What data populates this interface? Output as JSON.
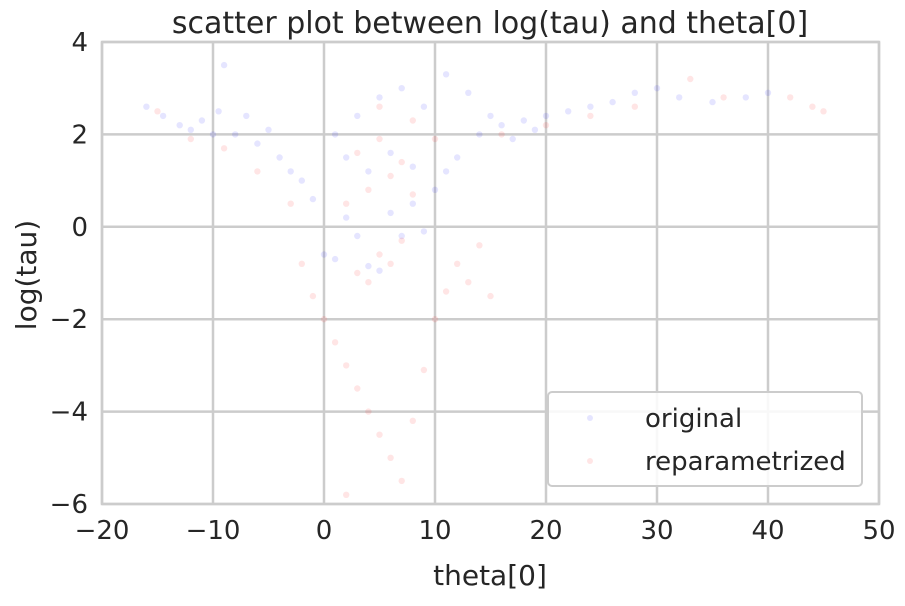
{
  "chart_data": {
    "type": "scatter",
    "title": "scatter plot between log(tau) and theta[0]",
    "xlabel": "theta[0]",
    "ylabel": "log(tau)",
    "xlim": [
      -20,
      50
    ],
    "ylim": [
      -6,
      4
    ],
    "xticks": [
      -20,
      -10,
      0,
      10,
      20,
      30,
      40,
      50
    ],
    "yticks": [
      -6,
      -4,
      -2,
      0,
      2,
      4
    ],
    "grid": true,
    "legend_position": "lower-right",
    "point_alpha": 0.1,
    "series": [
      {
        "name": "original",
        "color": "#0000ff",
        "points": [
          [
            -16,
            2.6
          ],
          [
            -14.5,
            2.4
          ],
          [
            -13,
            2.2
          ],
          [
            -12,
            2.1
          ],
          [
            -11,
            2.3
          ],
          [
            -10,
            2.0
          ],
          [
            -9.5,
            2.5
          ],
          [
            -9,
            3.5
          ],
          [
            -8,
            2.0
          ],
          [
            -7,
            2.4
          ],
          [
            -6,
            1.8
          ],
          [
            -5,
            2.1
          ],
          [
            -4,
            1.5
          ],
          [
            -3,
            1.2
          ],
          [
            -2,
            1.0
          ],
          [
            -1,
            0.6
          ],
          [
            0,
            -0.6
          ],
          [
            1,
            -0.7
          ],
          [
            2,
            0.2
          ],
          [
            3,
            -0.2
          ],
          [
            4,
            -0.85
          ],
          [
            5,
            -0.95
          ],
          [
            6,
            0.3
          ],
          [
            7,
            -0.2
          ],
          [
            8,
            0.5
          ],
          [
            9,
            -0.1
          ],
          [
            10,
            0.8
          ],
          [
            11,
            1.2
          ],
          [
            12,
            1.5
          ],
          [
            14,
            2.0
          ],
          [
            16,
            2.2
          ],
          [
            18,
            2.3
          ],
          [
            20,
            2.4
          ],
          [
            22,
            2.5
          ],
          [
            24,
            2.6
          ],
          [
            26,
            2.7
          ],
          [
            28,
            2.9
          ],
          [
            30,
            3.0
          ],
          [
            32,
            2.8
          ],
          [
            35,
            2.7
          ],
          [
            38,
            2.8
          ],
          [
            40,
            2.9
          ],
          [
            2,
            1.5
          ],
          [
            4,
            1.2
          ],
          [
            6,
            1.6
          ],
          [
            8,
            1.3
          ],
          [
            3,
            2.4
          ],
          [
            5,
            2.8
          ],
          [
            7,
            3.0
          ],
          [
            9,
            2.6
          ],
          [
            1,
            2.0
          ],
          [
            11,
            3.3
          ],
          [
            13,
            2.9
          ],
          [
            15,
            2.4
          ],
          [
            17,
            1.9
          ],
          [
            19,
            2.1
          ]
        ]
      },
      {
        "name": "reparametrized",
        "color": "#ff0000",
        "points": [
          [
            -15,
            2.5
          ],
          [
            -12,
            1.9
          ],
          [
            -9,
            1.7
          ],
          [
            -6,
            1.2
          ],
          [
            -3,
            0.5
          ],
          [
            -2,
            -0.8
          ],
          [
            -1,
            -1.5
          ],
          [
            0,
            -2.0
          ],
          [
            1,
            -2.5
          ],
          [
            2,
            -3.0
          ],
          [
            3,
            -3.5
          ],
          [
            4,
            -4.0
          ],
          [
            5,
            -4.5
          ],
          [
            6,
            -5.0
          ],
          [
            7,
            -5.5
          ],
          [
            2,
            -5.8
          ],
          [
            8,
            -4.2
          ],
          [
            9,
            -3.1
          ],
          [
            10,
            -2.0
          ],
          [
            11,
            -1.4
          ],
          [
            12,
            -0.8
          ],
          [
            13,
            -1.2
          ],
          [
            14,
            -0.4
          ],
          [
            15,
            -1.5
          ],
          [
            3,
            -1.0
          ],
          [
            4,
            -1.2
          ],
          [
            5,
            -0.6
          ],
          [
            6,
            -0.8
          ],
          [
            7,
            -0.3
          ],
          [
            2,
            0.5
          ],
          [
            4,
            0.8
          ],
          [
            6,
            1.1
          ],
          [
            8,
            0.7
          ],
          [
            3,
            1.6
          ],
          [
            5,
            1.9
          ],
          [
            7,
            1.4
          ],
          [
            5,
            2.6
          ],
          [
            8,
            2.3
          ],
          [
            10,
            1.9
          ],
          [
            16,
            2.0
          ],
          [
            20,
            2.2
          ],
          [
            24,
            2.4
          ],
          [
            28,
            2.6
          ],
          [
            33,
            3.2
          ],
          [
            36,
            2.8
          ],
          [
            42,
            2.8
          ],
          [
            44,
            2.6
          ],
          [
            45,
            2.5
          ]
        ]
      }
    ]
  }
}
